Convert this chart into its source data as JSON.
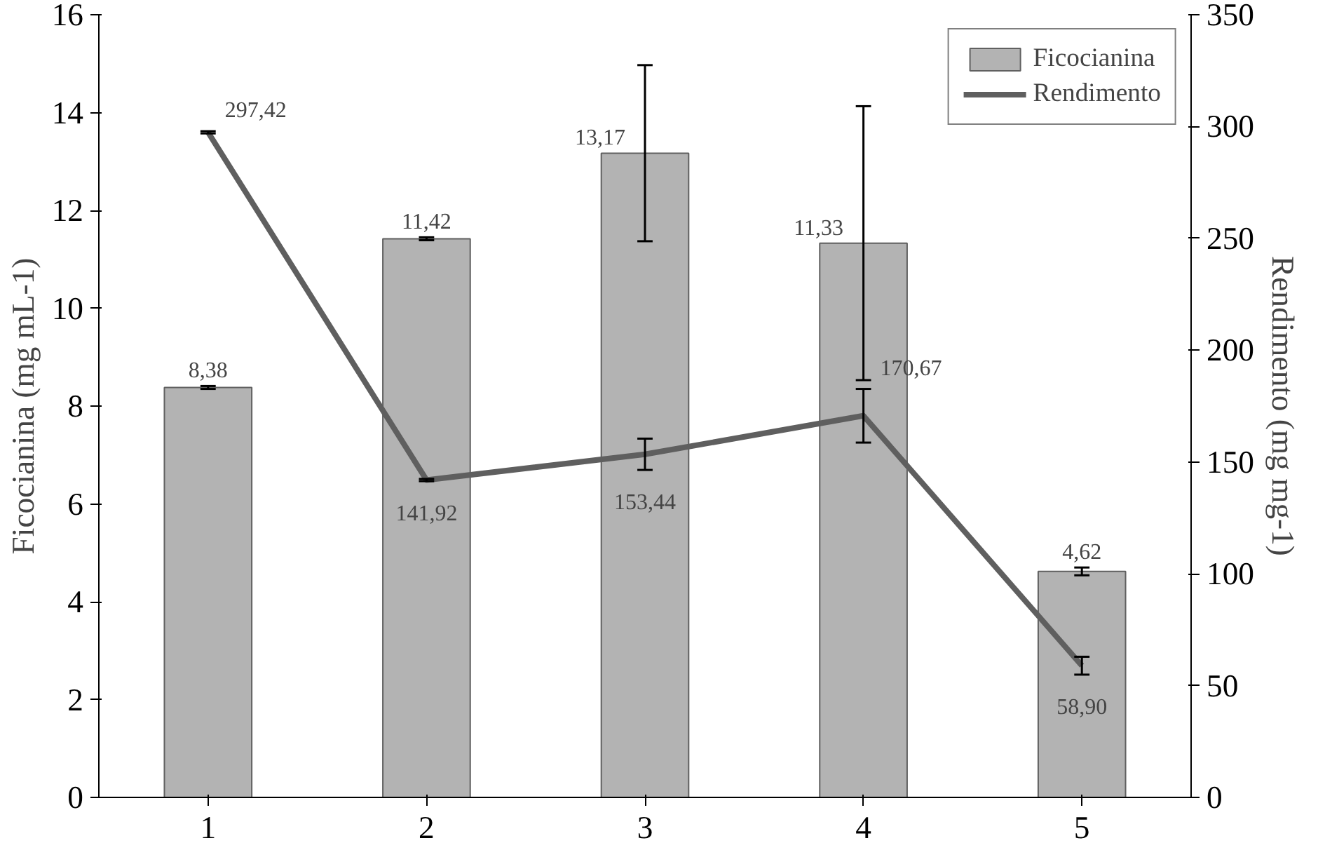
{
  "chart_data": {
    "type": "bar",
    "categories": [
      "1",
      "2",
      "3",
      "4",
      "5"
    ],
    "ylabel": "Ficocianina (mg mL-1)",
    "y2label": "Rendimento (mg mg-1)",
    "ylim": [
      0,
      16
    ],
    "yticks": [
      0,
      2,
      4,
      6,
      8,
      10,
      12,
      14,
      16
    ],
    "y2lim": [
      0,
      350
    ],
    "y2ticks": [
      0,
      50,
      100,
      150,
      200,
      250,
      300,
      350
    ],
    "grid": false,
    "legend": "top right",
    "series": [
      {
        "name": "Ficocianina",
        "color": "#b3b3b3",
        "values": [
          8.38,
          11.42,
          13.17,
          11.33,
          4.62
        ],
        "errors": [
          0.03,
          0.03,
          1.8,
          2.8,
          0.08
        ],
        "value_labels": [
          "8,38",
          "11,42",
          "13,17",
          "11,33",
          "4,62"
        ]
      },
      {
        "name": "Rendimento",
        "type": "line",
        "axis": "y2",
        "color": "#5f5f5f",
        "values": [
          297.42,
          141.92,
          153.44,
          170.67,
          58.9
        ],
        "errors": [
          0.5,
          0.5,
          7,
          12,
          4
        ],
        "value_labels": [
          "297,42",
          "141,92",
          "153,44",
          "170,67",
          "58,90"
        ]
      }
    ]
  }
}
